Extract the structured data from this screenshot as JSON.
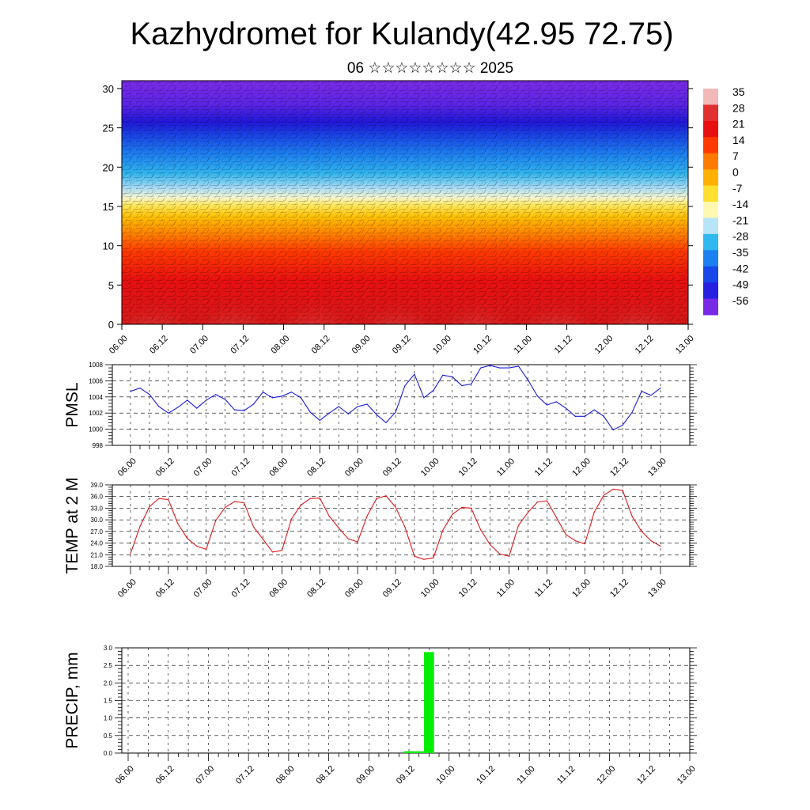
{
  "page": {
    "title": "Kazhydromet for Kulandy(42.95 72.75)",
    "subtitle": "06 ☆☆☆☆☆☆☆☆ 2025"
  },
  "chart_data": [
    {
      "type": "heatmap",
      "name": "vertical-section",
      "x_ticks": [
        "06.00",
        "06.12",
        "07.00",
        "07.12",
        "08.00",
        "08.12",
        "09.00",
        "09.12",
        "10.00",
        "10.12",
        "11.00",
        "11.12",
        "12.00",
        "12.12",
        "13.00"
      ],
      "y_ticks": [
        0,
        5,
        10,
        15,
        20,
        25,
        30
      ],
      "ylim": [
        0,
        31
      ],
      "colorbar_labels": [
        "35",
        "28",
        "21",
        "14",
        "7",
        "0",
        "-7",
        "-14",
        "-21",
        "-28",
        "-35",
        "-42",
        "-49",
        "-56"
      ],
      "colorbar_colors": [
        "#f2b8b8",
        "#e03030",
        "#e81010",
        "#ff3a00",
        "#ff7a00",
        "#ffb000",
        "#ffe030",
        "#fff8b0",
        "#b8e4f8",
        "#30b8f0",
        "#1c80f0",
        "#1848e8",
        "#2820e0",
        "#7a28e8"
      ]
    },
    {
      "type": "line",
      "name": "pmsl",
      "ylabel": "PMSL",
      "x_ticks": [
        "06.00",
        "06.12",
        "07.00",
        "07.12",
        "08.00",
        "08.12",
        "09.00",
        "09.12",
        "10.00",
        "10.12",
        "11.00",
        "11.12",
        "12.00",
        "12.12",
        "13.00"
      ],
      "y_ticks": [
        "998",
        "1000",
        "1002",
        "1004",
        "1006",
        "1008"
      ],
      "ylim": [
        998,
        1008
      ],
      "color": "#1a1adc",
      "values": [
        1004.7,
        1005.1,
        1004.3,
        1002.8,
        1002.0,
        1002.7,
        1003.6,
        1002.6,
        1003.6,
        1004.3,
        1003.7,
        1002.4,
        1002.3,
        1003.1,
        1004.6,
        1003.9,
        1004.1,
        1004.6,
        1003.9,
        1002.1,
        1001.1,
        1002.0,
        1002.8,
        1001.9,
        1002.8,
        1003.1,
        1001.8,
        1000.8,
        1002.1,
        1005.4,
        1006.8,
        1003.9,
        1004.8,
        1006.7,
        1006.5,
        1005.4,
        1005.6,
        1007.6,
        1007.9,
        1007.6,
        1007.6,
        1007.8,
        1006.1,
        1004.1,
        1003.0,
        1003.4,
        1002.6,
        1001.6,
        1001.6,
        1002.4,
        1001.6,
        999.9,
        1000.5,
        1002.1,
        1004.7,
        1004.2,
        1005.1
      ]
    },
    {
      "type": "line",
      "name": "temp2m",
      "ylabel": "TEMP at 2 M",
      "x_ticks": [
        "06.00",
        "06.12",
        "07.00",
        "07.12",
        "08.00",
        "08.12",
        "09.00",
        "09.12",
        "10.00",
        "10.12",
        "11.00",
        "11.12",
        "12.00",
        "12.12",
        "13.00"
      ],
      "y_ticks": [
        "18.0",
        "21.0",
        "24.0",
        "27.0",
        "30.0",
        "33.0",
        "36.0",
        "39.0"
      ],
      "ylim": [
        18,
        39
      ],
      "color": "#dc1a1a",
      "values": [
        21.3,
        28.3,
        33.4,
        35.5,
        35.2,
        29.0,
        25.2,
        23.2,
        22.4,
        29.8,
        33.2,
        34.7,
        34.4,
        28.2,
        25.0,
        21.7,
        22.1,
        30.2,
        33.8,
        35.5,
        35.6,
        30.9,
        27.9,
        25.1,
        24.3,
        31.0,
        35.5,
        36.2,
        33.3,
        28.1,
        20.6,
        19.8,
        20.2,
        27.3,
        31.4,
        33.2,
        33.0,
        27.4,
        23.6,
        21.2,
        20.6,
        28.6,
        31.9,
        34.6,
        34.9,
        30.6,
        26.2,
        24.6,
        23.8,
        32.0,
        36.3,
        37.9,
        37.6,
        30.9,
        27.0,
        24.6,
        23.2
      ]
    },
    {
      "type": "bar",
      "name": "precip",
      "ylabel": "PRECIP, mm",
      "x_ticks": [
        "06.00",
        "06.12",
        "07.00",
        "07.12",
        "08.00",
        "08.12",
        "09.00",
        "09.12",
        "10.00",
        "10.12",
        "11.00",
        "11.12",
        "12.00",
        "12.12",
        "13.00"
      ],
      "y_ticks": [
        "0.0",
        "0.5",
        "1.0",
        "1.5",
        "2.0",
        "2.5",
        "3.0"
      ],
      "ylim": [
        0,
        3
      ],
      "color": "#00ee00",
      "values": [
        0,
        0,
        0,
        0,
        0,
        0,
        0,
        0,
        0,
        0,
        0,
        0,
        0,
        0,
        0,
        0,
        0,
        0,
        0,
        0,
        0,
        0,
        0,
        0,
        0,
        0,
        0,
        0,
        0.05,
        0.05,
        2.88,
        0,
        0,
        0,
        0,
        0,
        0,
        0,
        0,
        0,
        0,
        0,
        0,
        0,
        0,
        0,
        0,
        0,
        0,
        0,
        0,
        0,
        0,
        0,
        0,
        0,
        0
      ]
    }
  ]
}
